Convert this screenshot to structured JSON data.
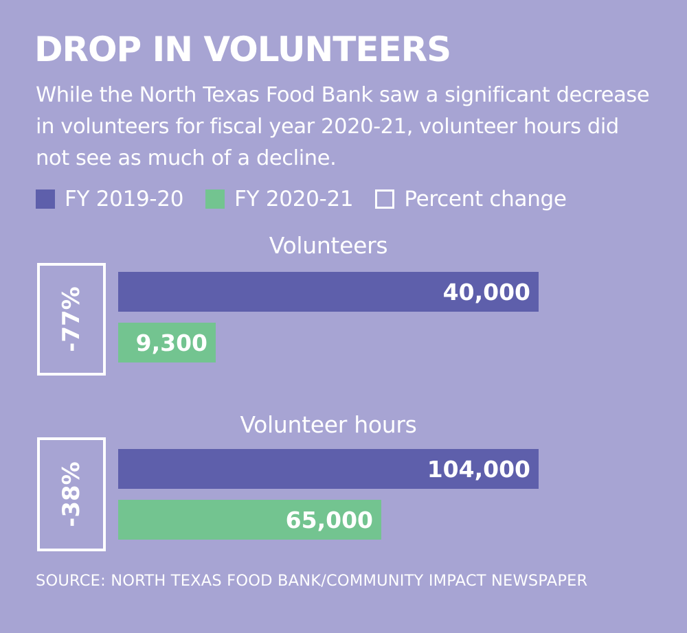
{
  "title": "DROP IN VOLUNTEERS",
  "subtitle": "While the North Texas Food Bank saw a significant decrease in volunteers for fiscal year 2020-21, volunteer hours did not see as much of a decline.",
  "legend": {
    "fy2019": "FY 2019-20",
    "fy2020": "FY 2020-21",
    "pct": "Percent change"
  },
  "colors": {
    "background": "#a7a4d3",
    "fy2019": "#5e5fab",
    "fy2020": "#73c490",
    "text": "#ffffff"
  },
  "source": "SOURCE: NORTH TEXAS FOOD BANK/COMMUNITY IMPACT NEWSPAPER",
  "chart_data": [
    {
      "type": "bar",
      "title": "Volunteers",
      "categories": [
        "FY 2019-20",
        "FY 2020-21"
      ],
      "values": [
        40000,
        9300
      ],
      "value_labels": [
        "40,000",
        "9,300"
      ],
      "percent_change": "-77%"
    },
    {
      "type": "bar",
      "title": "Volunteer hours",
      "categories": [
        "FY 2019-20",
        "FY 2020-21"
      ],
      "values": [
        104000,
        65000
      ],
      "value_labels": [
        "104,000",
        "65,000"
      ],
      "percent_change": "-38%"
    }
  ]
}
